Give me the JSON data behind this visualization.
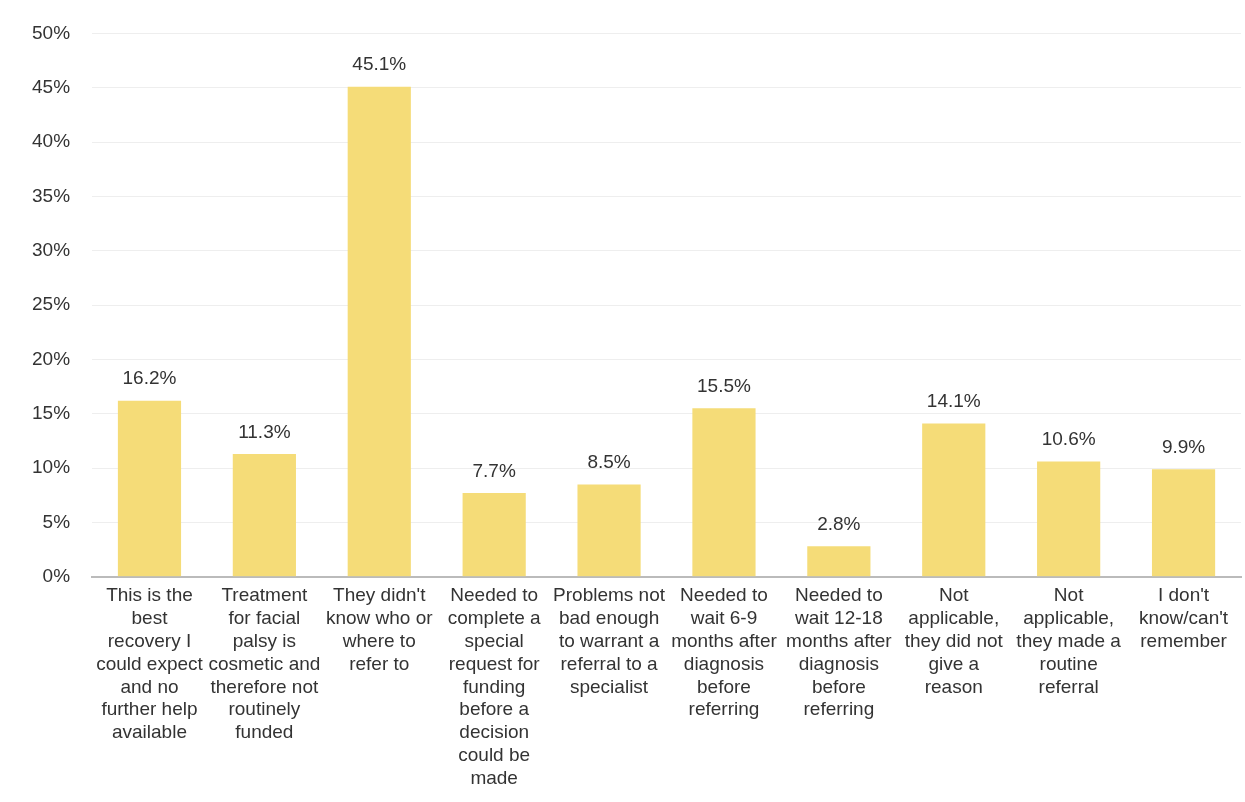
{
  "chart_data": {
    "type": "bar",
    "categories": [
      "This is the best recovery I could expect and no further help available",
      "Treatment for facial palsy is cosmetic and therefore not routinely funded",
      "They didn't know who or where to refer to",
      "Needed to complete a special request for funding before a decision could be made",
      "Problems not bad enough to warrant a referral to a specialist",
      "Needed to wait 6-9 months after diagnosis before referring",
      "Needed to wait 12-18 months after diagnosis before referring",
      "Not applicable, they did not give a reason",
      "Not applicable, they made a routine referral",
      "I don't know/can't remember"
    ],
    "values": [
      16.2,
      11.3,
      45.1,
      7.7,
      8.5,
      15.5,
      2.8,
      14.1,
      10.6,
      9.9
    ],
    "value_labels": [
      "16.2%",
      "11.3%",
      "45.1%",
      "7.7%",
      "8.5%",
      "15.5%",
      "2.8%",
      "14.1%",
      "10.6%",
      "9.9%"
    ],
    "color": "#f5dc78",
    "ylim": [
      0,
      50
    ],
    "yticks": [
      {
        "value": 0,
        "label": "0%"
      },
      {
        "value": 5,
        "label": "5%"
      },
      {
        "value": 10,
        "label": "10%"
      },
      {
        "value": 15,
        "label": "15%"
      },
      {
        "value": 20,
        "label": "20%"
      },
      {
        "value": 25,
        "label": "25%"
      },
      {
        "value": 30,
        "label": "30%"
      },
      {
        "value": 35,
        "label": "35%"
      },
      {
        "value": 40,
        "label": "40%"
      },
      {
        "value": 45,
        "label": "45%"
      },
      {
        "value": 50,
        "label": "50%"
      }
    ],
    "grid": "y",
    "legend": false
  }
}
